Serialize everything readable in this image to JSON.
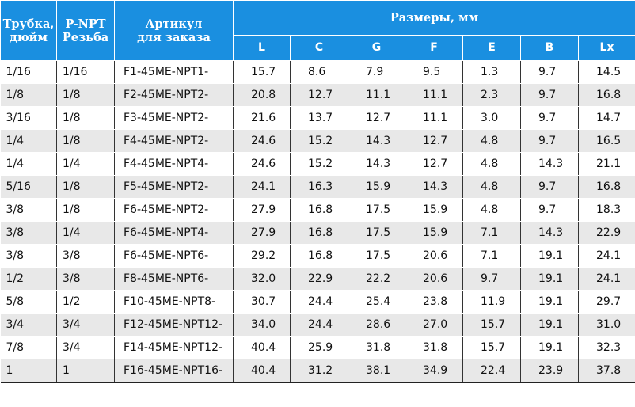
{
  "header": {
    "tube": [
      "Трубка,",
      "дюйм"
    ],
    "thread": [
      "P-NPT",
      "Резьба"
    ],
    "article": [
      "Артикул",
      "для заказа"
    ],
    "dimensions": "Размеры, мм",
    "dims": [
      "L",
      "C",
      "G",
      "F",
      "E",
      "B",
      "Lx"
    ]
  },
  "rows": [
    [
      "1/16",
      "1/16",
      "F1-45ME-NPT1-",
      "15.7",
      "8.6",
      "7.9",
      "9.5",
      "1.3",
      "9.7",
      "14.5"
    ],
    [
      "1/8",
      "1/8",
      "F2-45ME-NPT2-",
      "20.8",
      "12.7",
      "11.1",
      "11.1",
      "2.3",
      "9.7",
      "16.8"
    ],
    [
      "3/16",
      "1/8",
      "F3-45ME-NPT2-",
      "21.6",
      "13.7",
      "12.7",
      "11.1",
      "3.0",
      "9.7",
      "14.7"
    ],
    [
      "1/4",
      "1/8",
      "F4-45ME-NPT2-",
      "24.6",
      "15.2",
      "14.3",
      "12.7",
      "4.8",
      "9.7",
      "16.5"
    ],
    [
      "1/4",
      "1/4",
      "F4-45ME-NPT4-",
      "24.6",
      "15.2",
      "14.3",
      "12.7",
      "4.8",
      "14.3",
      "21.1"
    ],
    [
      "5/16",
      "1/8",
      "F5-45ME-NPT2-",
      "24.1",
      "16.3",
      "15.9",
      "14.3",
      "4.8",
      "9.7",
      "16.8"
    ],
    [
      "3/8",
      "1/8",
      "F6-45ME-NPT2-",
      "27.9",
      "16.8",
      "17.5",
      "15.9",
      "4.8",
      "9.7",
      "18.3"
    ],
    [
      "3/8",
      "1/4",
      "F6-45ME-NPT4-",
      "27.9",
      "16.8",
      "17.5",
      "15.9",
      "7.1",
      "14.3",
      "22.9"
    ],
    [
      "3/8",
      "3/8",
      "F6-45ME-NPT6-",
      "29.2",
      "16.8",
      "17.5",
      "20.6",
      "7.1",
      "19.1",
      "24.1"
    ],
    [
      "1/2",
      "3/8",
      "F8-45ME-NPT6-",
      "32.0",
      "22.9",
      "22.2",
      "20.6",
      "9.7",
      "19.1",
      "24.1"
    ],
    [
      "5/8",
      "1/2",
      "F10-45ME-NPT8-",
      "30.7",
      "24.4",
      "25.4",
      "23.8",
      "11.9",
      "19.1",
      "29.7"
    ],
    [
      "3/4",
      "3/4",
      "F12-45ME-NPT12-",
      "34.0",
      "24.4",
      "28.6",
      "27.0",
      "15.7",
      "19.1",
      "31.0"
    ],
    [
      "7/8",
      "3/4",
      "F14-45ME-NPT12-",
      "40.4",
      "25.9",
      "31.8",
      "31.8",
      "15.7",
      "19.1",
      "32.3"
    ],
    [
      "1",
      "1",
      "F16-45ME-NPT16-",
      "40.4",
      "31.2",
      "38.1",
      "34.9",
      "22.4",
      "23.9",
      "37.8"
    ]
  ],
  "colors": {
    "header_bg": "#1a8fe0",
    "header_text": "#ffffff",
    "alt_row_bg": "#e8e8e8"
  }
}
